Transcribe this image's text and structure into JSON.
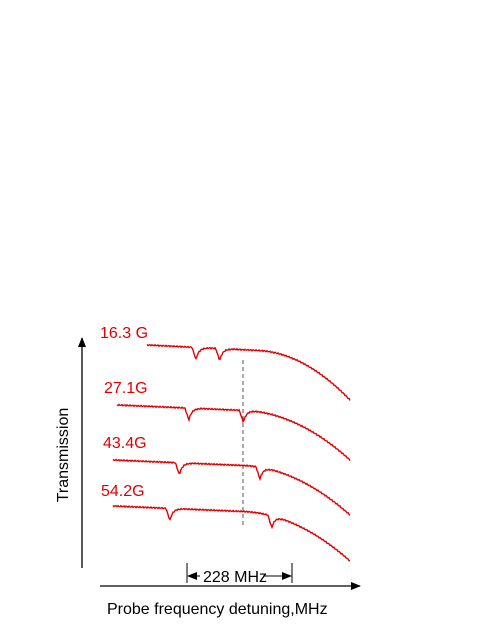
{
  "chart_data": {
    "type": "line",
    "xlabel": "Probe frequency detuning,MHz",
    "ylabel": "Transmission",
    "annotation": "228 MHz",
    "trace_color": "#e00000",
    "series": [
      {
        "name": "16.3 G",
        "dips": [
          0.35,
          0.45
        ]
      },
      {
        "name": "27.1G",
        "dips": [
          0.32,
          0.55
        ]
      },
      {
        "name": "43.4G",
        "dips": [
          0.28,
          0.62
        ]
      },
      {
        "name": "54.2G",
        "dips": [
          0.24,
          0.67
        ]
      }
    ]
  }
}
